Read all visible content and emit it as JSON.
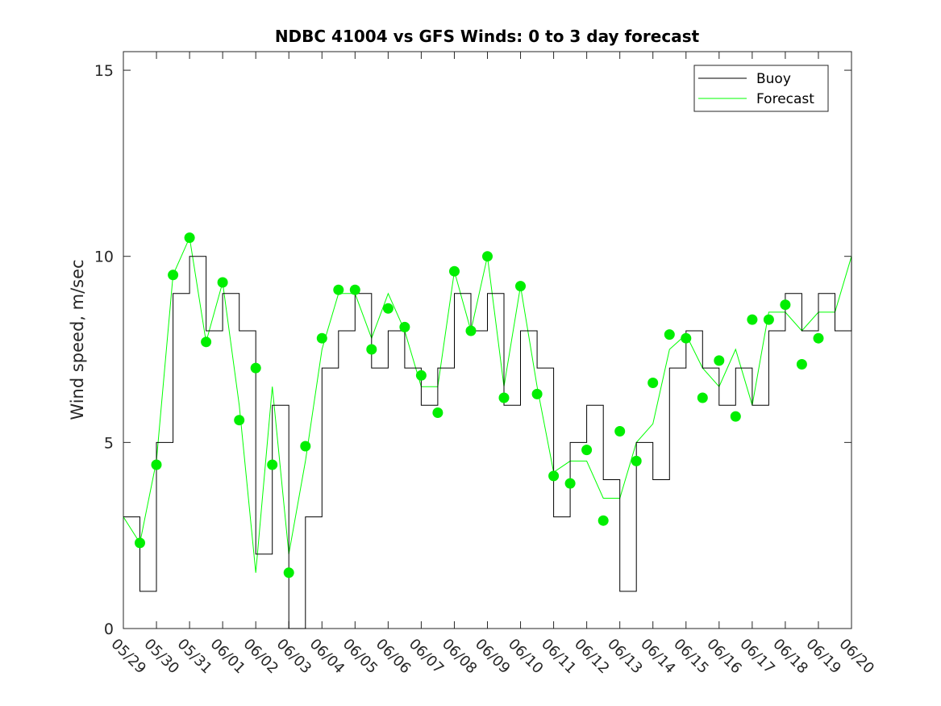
{
  "chart_data": {
    "type": "line",
    "title": "NDBC 41004 vs GFS Winds: 0 to 3 day forecast",
    "xlabel": "",
    "ylabel": "Wind speed, m/sec",
    "ylim": [
      0,
      15.5
    ],
    "yticks": [
      0,
      5,
      10,
      15
    ],
    "xlim": [
      "05/29",
      "06/20"
    ],
    "x_tick_labels": [
      "05/29",
      "05/30",
      "05/31",
      "06/01",
      "06/02",
      "06/03",
      "06/04",
      "06/05",
      "06/06",
      "06/07",
      "06/08",
      "06/09",
      "06/10",
      "06/11",
      "06/12",
      "06/13",
      "06/14",
      "06/15",
      "06/16",
      "06/17",
      "06/18",
      "06/19",
      "06/20"
    ],
    "grid": false,
    "legend_position": "top-right",
    "series": [
      {
        "name": "Buoy",
        "color": "#000000",
        "style": "stepped line",
        "x": [
          "05/29",
          "05/29 12:00",
          "05/30",
          "05/30 12:00",
          "05/31",
          "05/31 12:00",
          "06/01",
          "06/01 12:00",
          "06/02",
          "06/02 12:00",
          "06/03",
          "06/03 12:00",
          "06/04",
          "06/04 12:00",
          "06/05",
          "06/05 12:00",
          "06/06",
          "06/06 12:00",
          "06/07",
          "06/07 12:00",
          "06/08",
          "06/08 12:00",
          "06/09",
          "06/09 12:00",
          "06/10",
          "06/10 12:00",
          "06/11",
          "06/11 12:00",
          "06/12",
          "06/12 12:00",
          "06/13",
          "06/13 12:00",
          "06/14",
          "06/14 12:00",
          "06/15",
          "06/15 12:00",
          "06/16",
          "06/16 12:00",
          "06/17",
          "06/17 12:00",
          "06/18",
          "06/18 12:00",
          "06/19",
          "06/19 12:00",
          "06/20"
        ],
        "values": [
          3,
          1,
          5,
          9,
          10,
          8,
          9,
          8,
          2,
          6,
          0,
          3,
          7,
          8,
          9,
          7,
          8,
          7,
          6,
          7,
          9,
          8,
          9,
          6,
          8,
          7,
          3,
          5,
          6,
          4,
          1,
          5,
          4,
          7,
          8,
          7,
          6,
          7,
          6,
          8,
          9,
          8,
          9,
          8,
          10
        ]
      },
      {
        "name": "Forecast",
        "color": "#00ff00",
        "style": "line",
        "x": [
          "05/29",
          "05/29 12:00",
          "05/30",
          "05/30 12:00",
          "05/31",
          "05/31 12:00",
          "06/01",
          "06/01 12:00",
          "06/02",
          "06/02 12:00",
          "06/03",
          "06/03 12:00",
          "06/04",
          "06/04 12:00",
          "06/05",
          "06/05 12:00",
          "06/06",
          "06/06 12:00",
          "06/07",
          "06/07 12:00",
          "06/08",
          "06/08 12:00",
          "06/09",
          "06/09 12:00",
          "06/10",
          "06/10 12:00",
          "06/11",
          "06/11 12:00",
          "06/12",
          "06/12 12:00",
          "06/13",
          "06/13 12:00",
          "06/14",
          "06/14 12:00",
          "06/15",
          "06/15 12:00",
          "06/16",
          "06/16 12:00",
          "06/17",
          "06/17 12:00",
          "06/18",
          "06/18 12:00",
          "06/19",
          "06/19 12:00",
          "06/20"
        ],
        "values": [
          3,
          2.3,
          4.5,
          9.5,
          10.5,
          7.7,
          9.3,
          6,
          1.5,
          6.5,
          2,
          4.5,
          7.5,
          9,
          9,
          7.8,
          9,
          8,
          6.5,
          6.5,
          9.6,
          8,
          10,
          6.5,
          9.2,
          6.5,
          4.2,
          4.5,
          4.5,
          3.5,
          3.5,
          5,
          5.5,
          7.5,
          7.9,
          7,
          6.5,
          7.5,
          6,
          8.5,
          8.5,
          8,
          8.5,
          8.5,
          10
        ]
      }
    ],
    "forecast_markers": {
      "color": "#00ee00",
      "x": [
        "05/29 12:00",
        "05/30",
        "05/30 12:00",
        "05/31",
        "05/31 12:00",
        "06/01",
        "06/01 12:00",
        "06/02",
        "06/02 12:00",
        "06/03",
        "06/03 12:00",
        "06/04",
        "06/04 12:00",
        "06/05",
        "06/05 12:00",
        "06/06",
        "06/06 12:00",
        "06/07",
        "06/07 12:00",
        "06/08",
        "06/08 12:00",
        "06/09",
        "06/09 12:00",
        "06/10",
        "06/10 12:00",
        "06/11",
        "06/11 12:00",
        "06/12",
        "06/12 12:00",
        "06/13",
        "06/13 12:00",
        "06/14",
        "06/14 12:00",
        "06/15",
        "06/15 12:00",
        "06/16",
        "06/16 12:00",
        "06/17",
        "06/17 12:00",
        "06/18",
        "06/18 12:00",
        "06/19"
      ],
      "values": [
        2.3,
        4.4,
        9.5,
        10.5,
        7.7,
        9.3,
        5.6,
        7.0,
        4.4,
        1.5,
        4.9,
        7.8,
        9.1,
        9.1,
        7.5,
        8.6,
        8.1,
        6.8,
        5.8,
        9.6,
        8.0,
        10.0,
        6.2,
        9.2,
        6.3,
        4.1,
        3.9,
        4.8,
        2.9,
        5.3,
        4.5,
        6.6,
        7.9,
        7.8,
        6.2,
        7.2,
        5.7,
        8.3,
        8.3,
        8.7,
        7.1,
        7.8
      ]
    }
  }
}
